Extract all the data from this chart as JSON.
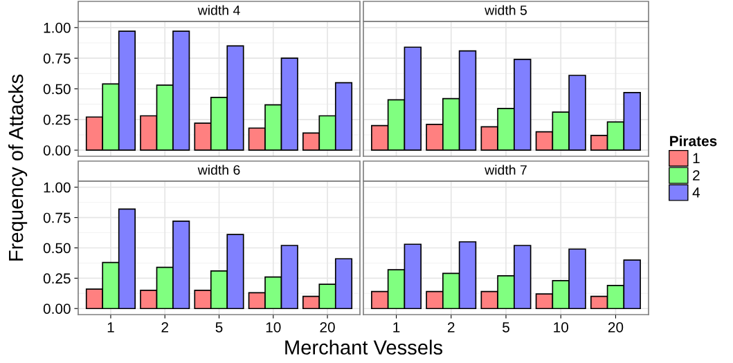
{
  "chart_data": [
    {
      "type": "bar",
      "title": "width 4",
      "ylabel": "Frequency of Attacks",
      "legend": "right",
      "legend_title": "Pirates",
      "tick_labels": "y",
      "grid": true,
      "ylim": [
        -0.05,
        1.05
      ],
      "yticks": [
        {
          "value": 0,
          "label": "0.00"
        },
        {
          "value": 0.25,
          "label": "0.25"
        },
        {
          "value": 0.5,
          "label": "0.50"
        },
        {
          "value": 0.75,
          "label": "0.75"
        },
        {
          "value": 1,
          "label": "1.00"
        }
      ],
      "categories": [
        "1",
        "2",
        "5",
        "10",
        "20"
      ],
      "series": [
        {
          "name": "1",
          "color": "#ff8080",
          "values": [
            0.27,
            0.28,
            0.22,
            0.18,
            0.14
          ]
        },
        {
          "name": "2",
          "color": "#80ff80",
          "values": [
            0.54,
            0.53,
            0.43,
            0.37,
            0.28
          ]
        },
        {
          "name": "4",
          "color": "#8080ff",
          "values": [
            0.97,
            0.97,
            0.85,
            0.75,
            0.55
          ]
        }
      ]
    },
    {
      "type": "bar",
      "title": "width 5",
      "tick_labels": false,
      "grid": true,
      "ylim": [
        -0.05,
        1.05
      ],
      "yticks": [
        {
          "value": 0,
          "label": null
        },
        {
          "value": 0.25,
          "label": null
        },
        {
          "value": 0.5,
          "label": null
        },
        {
          "value": 0.75,
          "label": null
        },
        {
          "value": 1,
          "label": null
        }
      ],
      "categories": [
        "1",
        "2",
        "5",
        "10",
        "20"
      ],
      "series": [
        {
          "color": "#ff8080",
          "values": [
            0.2,
            0.21,
            0.19,
            0.15,
            0.12
          ]
        },
        {
          "color": "#80ff80",
          "values": [
            0.41,
            0.42,
            0.34,
            0.31,
            0.23
          ]
        },
        {
          "color": "#8080ff",
          "values": [
            0.84,
            0.81,
            0.74,
            0.61,
            0.47
          ]
        }
      ]
    },
    {
      "type": "bar",
      "title": "width 6",
      "xlabel": "Merchant Vessels",
      "grid": true,
      "ylim": [
        -0.05,
        1.05
      ],
      "yticks": [
        {
          "value": 0,
          "label": "0.00"
        },
        {
          "value": 0.25,
          "label": "0.25"
        },
        {
          "value": 0.5,
          "label": "0.50"
        },
        {
          "value": 0.75,
          "label": "0.75"
        },
        {
          "value": 1,
          "label": "1.00"
        }
      ],
      "categories": [
        "1",
        "2",
        "5",
        "10",
        "20"
      ],
      "series": [
        {
          "color": "#ff8080",
          "values": [
            0.16,
            0.15,
            0.15,
            0.13,
            0.1
          ]
        },
        {
          "color": "#80ff80",
          "values": [
            0.38,
            0.34,
            0.31,
            0.26,
            0.2
          ]
        },
        {
          "color": "#8080ff",
          "values": [
            0.82,
            0.72,
            0.61,
            0.52,
            0.41
          ]
        }
      ]
    },
    {
      "type": "bar",
      "title": "width 7",
      "tick_labels": "x",
      "grid": true,
      "ylim": [
        -0.05,
        1.05
      ],
      "yticks": [
        {
          "value": 0,
          "label": null
        },
        {
          "value": 0.25,
          "label": null
        },
        {
          "value": 0.5,
          "label": null
        },
        {
          "value": 0.75,
          "label": null
        },
        {
          "value": 1,
          "label": null
        }
      ],
      "categories": [
        "1",
        "2",
        "5",
        "10",
        "20"
      ],
      "series": [
        {
          "color": "#ff8080",
          "values": [
            0.14,
            0.14,
            0.14,
            0.12,
            0.1
          ]
        },
        {
          "color": "#80ff80",
          "values": [
            0.32,
            0.29,
            0.27,
            0.23,
            0.19
          ]
        },
        {
          "color": "#8080ff",
          "values": [
            0.53,
            0.55,
            0.52,
            0.49,
            0.4
          ]
        }
      ]
    }
  ]
}
